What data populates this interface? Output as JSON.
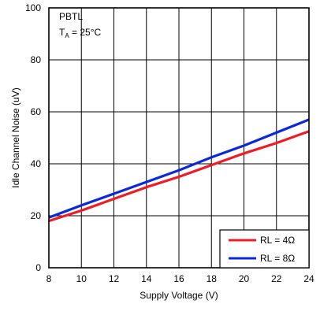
{
  "chart_data": {
    "type": "line",
    "xlabel": "Supply Voltage (V)",
    "ylabel": "Idle Channel Noise (uV)",
    "xlim": [
      8,
      24
    ],
    "ylim": [
      0,
      100
    ],
    "xticks": [
      8,
      10,
      12,
      14,
      16,
      18,
      20,
      22,
      24
    ],
    "yticks": [
      0,
      20,
      40,
      60,
      80,
      100
    ],
    "grid": true,
    "annotation": {
      "line1": "PBTL",
      "line2_main": "T",
      "line2_sub": "A",
      "line2_rest": " = 25°C"
    },
    "legend_position": "bottom-right",
    "series": [
      {
        "name": "RL = 4Ω",
        "color": "#ee1c25",
        "x": [
          8,
          10,
          12,
          14,
          16,
          18,
          20,
          22,
          24
        ],
        "y": [
          18,
          22,
          26.5,
          31,
          35,
          39.5,
          44,
          48,
          52.5
        ]
      },
      {
        "name": "RL = 8Ω",
        "color": "#0a28dc",
        "x": [
          8,
          10,
          12,
          14,
          16,
          18,
          20,
          22,
          24
        ],
        "y": [
          19.3,
          24,
          28.5,
          33,
          37.5,
          42.5,
          47,
          52,
          57
        ]
      }
    ]
  }
}
